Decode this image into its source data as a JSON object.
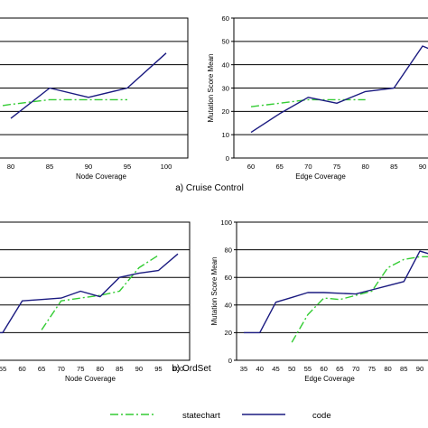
{
  "captions": [
    "a) Cruise Control",
    "b) OrdSet"
  ],
  "colors": {
    "statechart": "#33cc33",
    "code": "#1a1a80"
  },
  "legend": {
    "statechart": "statechart",
    "code": "code"
  },
  "chart_data": [
    {
      "type": "line",
      "xlabel": "Node Coverage",
      "ylabel": "",
      "xticks": [
        80,
        85,
        90,
        95,
        100
      ],
      "xlim": [
        77,
        105
      ],
      "ylim": [
        0,
        60
      ],
      "yticks": [],
      "gridlines": [
        10,
        20,
        30,
        40,
        50
      ],
      "grid": true,
      "series": [
        {
          "name": "statechart",
          "x": [
            77,
            80,
            85,
            90,
            95
          ],
          "y": [
            21.5,
            23,
            25,
            25,
            25
          ]
        },
        {
          "name": "code",
          "x": [
            80,
            85,
            90,
            95,
            100
          ],
          "y": [
            17,
            30,
            26,
            30,
            45
          ]
        }
      ]
    },
    {
      "type": "line",
      "xlabel": "Edge Coverage",
      "ylabel": "Mutation Score Mean",
      "xticks": [
        60,
        65,
        70,
        75,
        80,
        85,
        90
      ],
      "xlim": [
        57,
        93
      ],
      "ylim": [
        0,
        60
      ],
      "yticks": [
        0,
        10,
        20,
        30,
        40,
        50,
        60
      ],
      "gridlines": [
        10,
        20,
        30,
        40,
        50
      ],
      "grid": true,
      "series": [
        {
          "name": "statechart",
          "x": [
            60,
            65,
            70,
            75,
            80
          ],
          "y": [
            22,
            23.5,
            25,
            25,
            25
          ]
        },
        {
          "name": "code",
          "x": [
            60,
            65,
            70,
            75,
            80,
            85,
            90,
            93
          ],
          "y": [
            11,
            19,
            26,
            23.5,
            28.5,
            30,
            48,
            45
          ]
        }
      ]
    },
    {
      "type": "line",
      "xlabel": "Node Coverage",
      "ylabel": "",
      "xticks": [
        55,
        60,
        65,
        70,
        75,
        80,
        85,
        90,
        95,
        100
      ],
      "xlim": [
        52,
        102
      ],
      "ylim": [
        0,
        100
      ],
      "yticks": [],
      "gridlines": [
        20,
        40,
        60,
        80
      ],
      "grid": true,
      "series": [
        {
          "name": "statechart",
          "x": [
            65,
            70,
            75,
            80,
            85,
            90,
            95
          ],
          "y": [
            22,
            43,
            45,
            47,
            50,
            67,
            76
          ]
        },
        {
          "name": "code",
          "x": [
            52,
            55,
            60,
            65,
            70,
            75,
            80,
            85,
            90,
            95,
            100
          ],
          "y": [
            20,
            20,
            43,
            44,
            45,
            50,
            46,
            60,
            63,
            65,
            77
          ]
        }
      ]
    },
    {
      "type": "line",
      "xlabel": "Edge Coverage",
      "ylabel": "Mutation Score Mean",
      "xticks": [
        35,
        40,
        45,
        50,
        55,
        60,
        65,
        70,
        75,
        80,
        85,
        90
      ],
      "xlim": [
        32,
        93
      ],
      "ylim": [
        0,
        100
      ],
      "yticks": [
        0,
        20,
        40,
        60,
        80,
        100
      ],
      "gridlines": [
        20,
        40,
        60,
        80
      ],
      "grid": true,
      "series": [
        {
          "name": "statechart",
          "x": [
            50,
            55,
            60,
            65,
            70,
            75,
            80,
            85,
            90,
            93
          ],
          "y": [
            13,
            33,
            45,
            44,
            47,
            50,
            67,
            73,
            75,
            75
          ]
        },
        {
          "name": "code",
          "x": [
            35,
            40,
            45,
            50,
            55,
            60,
            65,
            70,
            75,
            80,
            85,
            90,
            93
          ],
          "y": [
            20,
            20,
            42,
            45.5,
            49,
            49,
            48.5,
            48,
            51,
            54,
            57,
            79,
            77
          ]
        }
      ]
    }
  ]
}
